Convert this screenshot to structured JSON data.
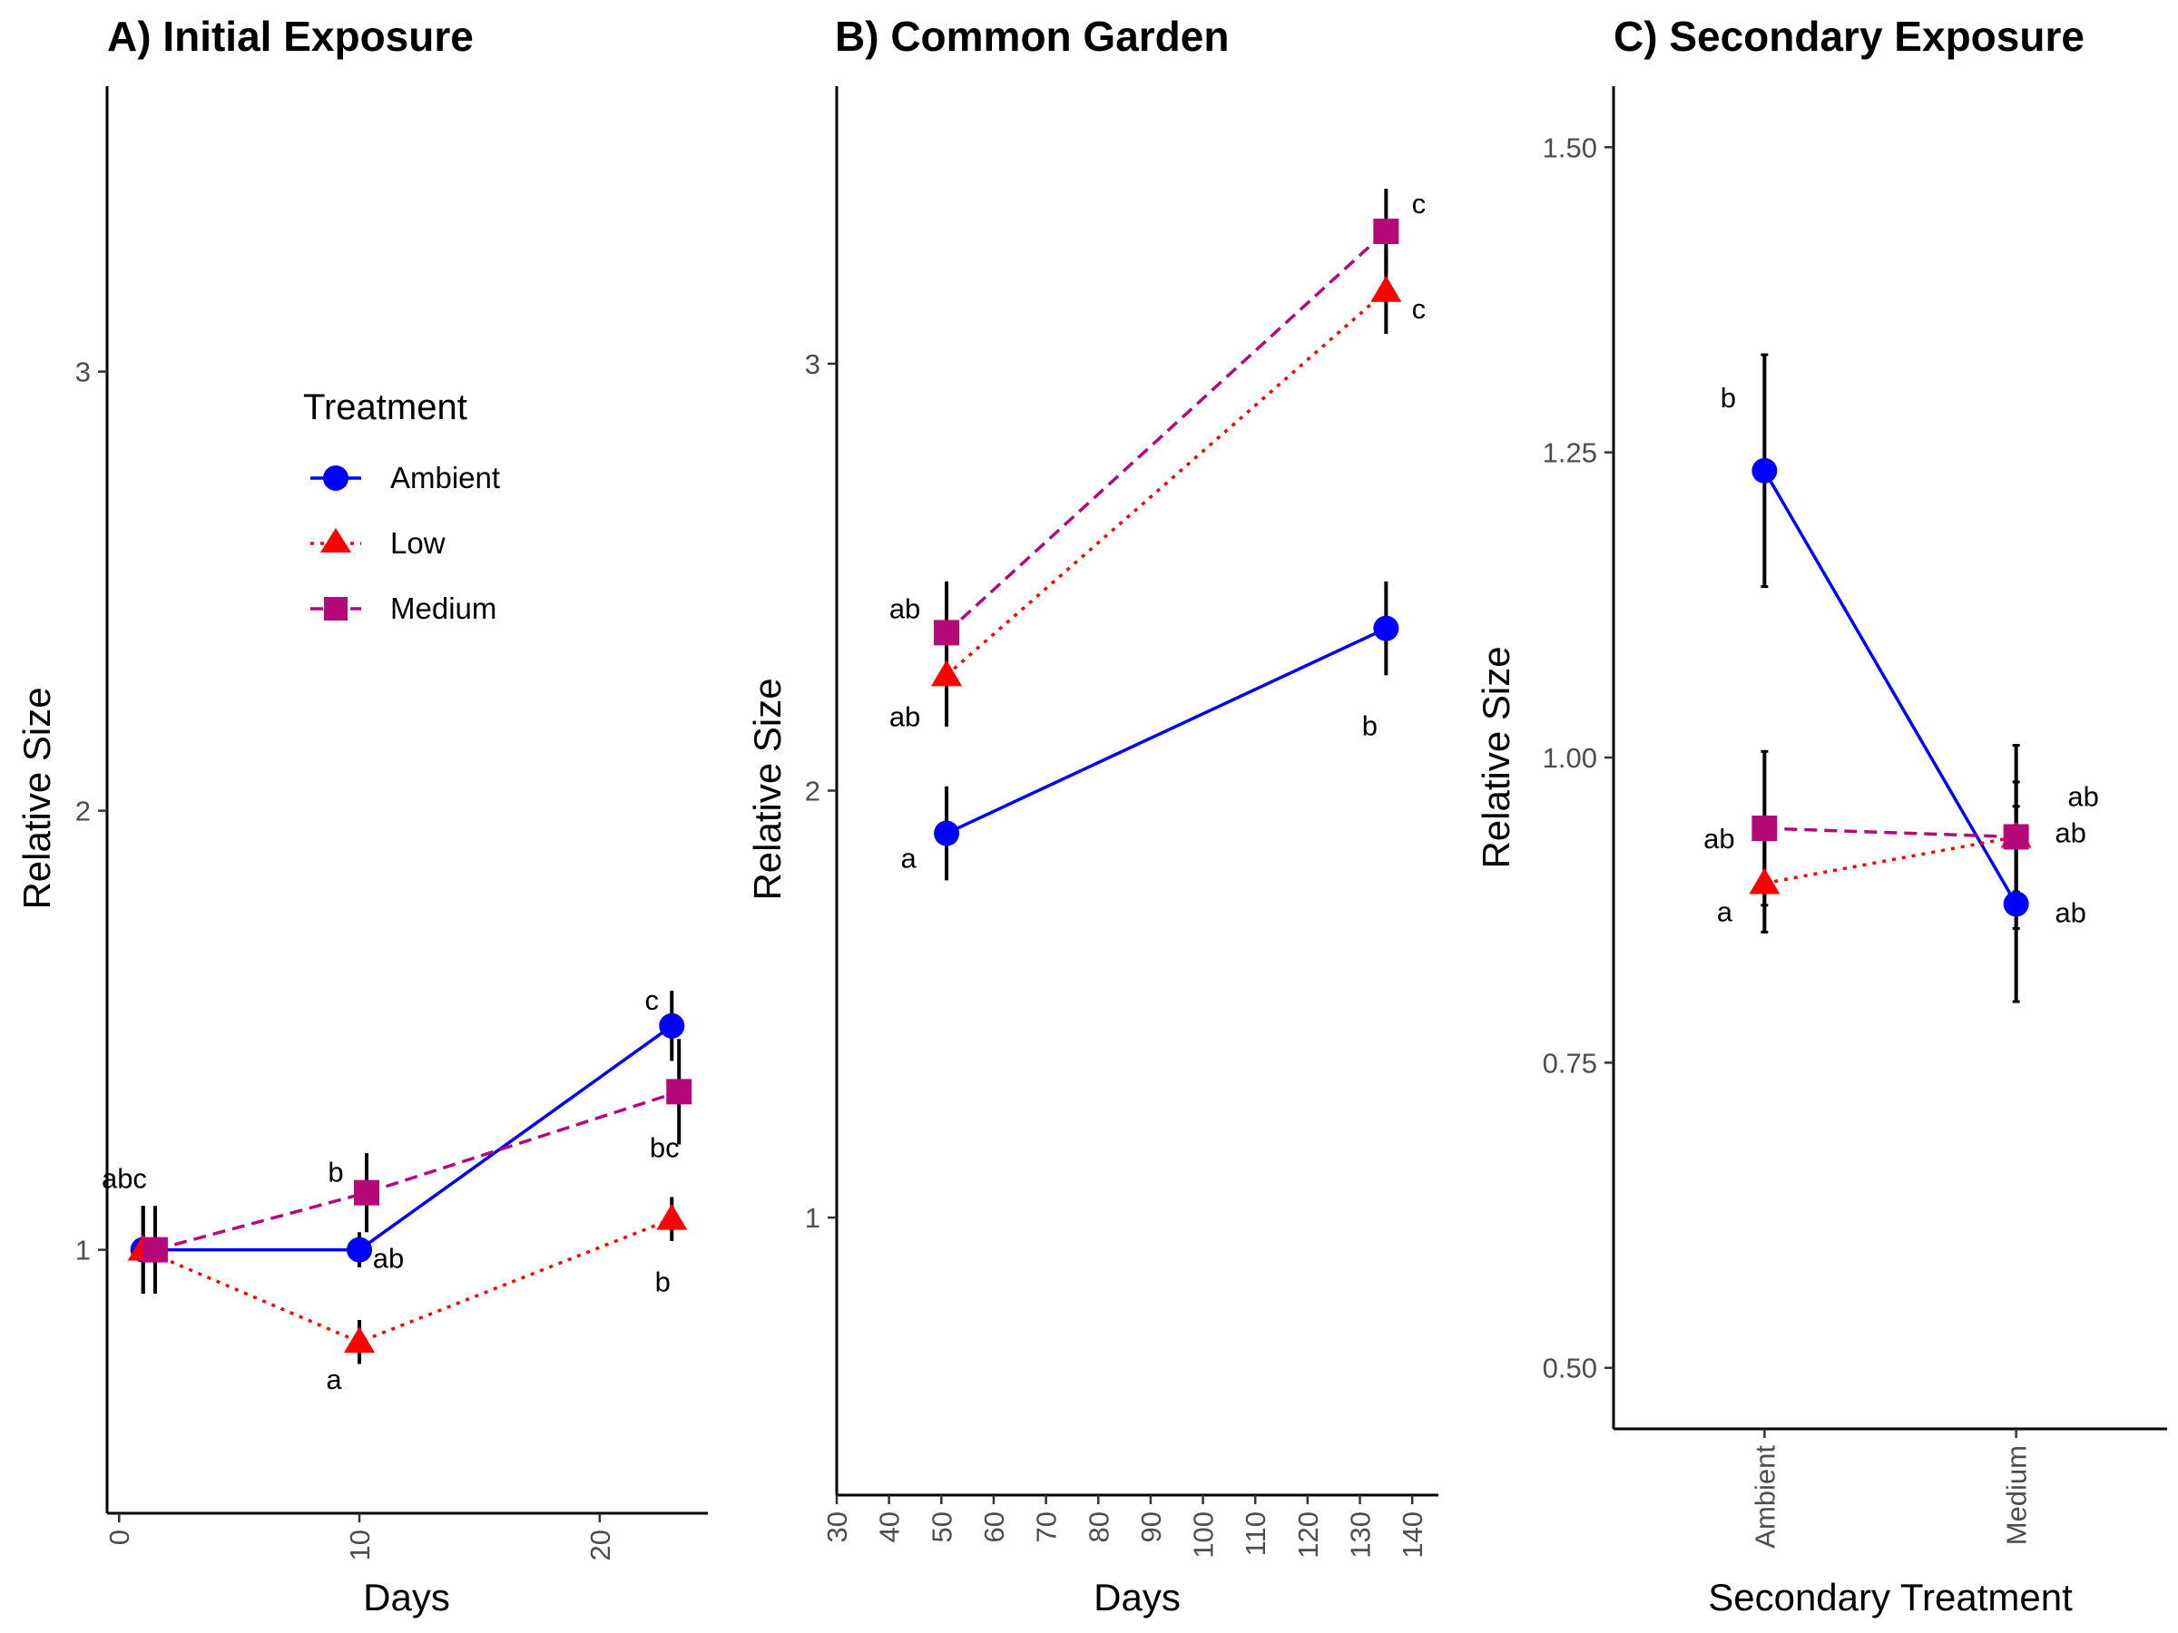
{
  "colors": {
    "Ambient": "#0000ff",
    "Low": "#ff0000",
    "Medium": "#b5097a"
  },
  "chart_data": [
    {
      "type": "line",
      "title": "A) Initial Exposure",
      "xlabel": "Days",
      "ylabel": "Relative Size",
      "xlim": [
        -0.5,
        24.5
      ],
      "ylim": [
        0.4,
        3.65
      ],
      "xticks": [
        0,
        10,
        20
      ],
      "yticks": [
        1,
        2,
        3
      ],
      "rotate_x_ticks": true,
      "legend": {
        "title": "Treatment",
        "position": "inside-top-left",
        "entries": [
          "Ambient",
          "Low",
          "Medium"
        ]
      },
      "series": [
        {
          "name": "Ambient",
          "x": [
            1,
            10,
            23
          ],
          "y": [
            1.0,
            1.0,
            1.51
          ],
          "err": [
            0.1,
            0.04,
            0.08
          ],
          "letters": [
            "",
            "ab",
            "c"
          ]
        },
        {
          "name": "Low",
          "x": [
            1,
            10,
            23
          ],
          "y": [
            1.0,
            0.79,
            1.07
          ],
          "err": [
            0.1,
            0.05,
            0.05
          ],
          "letters": [
            "",
            "a",
            "b"
          ]
        },
        {
          "name": "Medium",
          "x": [
            1.5,
            10.3,
            23.3
          ],
          "y": [
            1.0,
            1.13,
            1.36
          ],
          "err": [
            0.1,
            0.09,
            0.12
          ],
          "letters": [
            "abc",
            "b",
            "bc"
          ]
        }
      ]
    },
    {
      "type": "line",
      "title": "B) Common Garden",
      "xlabel": "Days",
      "ylabel": "Relative Size",
      "xlim": [
        30,
        145
      ],
      "ylim": [
        0.35,
        3.65
      ],
      "xticks": [
        30,
        40,
        50,
        60,
        70,
        80,
        90,
        100,
        110,
        120,
        130,
        140
      ],
      "yticks": [
        1,
        2,
        3
      ],
      "rotate_x_ticks": true,
      "series": [
        {
          "name": "Ambient",
          "x": [
            51,
            135
          ],
          "y": [
            1.9,
            2.38
          ],
          "err": [
            0.11,
            0.11
          ],
          "letters": [
            "a",
            "b"
          ]
        },
        {
          "name": "Low",
          "x": [
            51,
            135
          ],
          "y": [
            2.27,
            3.17
          ],
          "err": [
            0.12,
            0.1
          ],
          "letters": [
            "ab",
            "c"
          ]
        },
        {
          "name": "Medium",
          "x": [
            51,
            135
          ],
          "y": [
            2.37,
            3.31
          ],
          "err": [
            0.12,
            0.1
          ],
          "letters": [
            "ab",
            "c"
          ]
        }
      ]
    },
    {
      "type": "line",
      "title": "C) Secondary Exposure",
      "xlabel": "Secondary Treatment",
      "ylabel": "Relative Size",
      "categories": [
        "Ambient",
        "Medium"
      ],
      "ylim": [
        0.45,
        1.55
      ],
      "yticks": [
        "0.50",
        "0.75",
        "1.00",
        "1.25",
        "1.50"
      ],
      "rotate_x_ticks": true,
      "series": [
        {
          "name": "Ambient",
          "x": [
            "Ambient",
            "Medium"
          ],
          "y": [
            1.235,
            0.88
          ],
          "err": [
            0.095,
            0.08
          ],
          "letters": [
            "b",
            "ab"
          ]
        },
        {
          "name": "Low",
          "x": [
            "Ambient",
            "Medium"
          ],
          "y": [
            0.897,
            0.935
          ],
          "err": [
            0.04,
            0.045
          ],
          "letters": [
            "a",
            "ab"
          ]
        },
        {
          "name": "Medium",
          "x": [
            "Ambient",
            "Medium"
          ],
          "y": [
            0.942,
            0.935
          ],
          "err": [
            0.063,
            0.075
          ],
          "letters": [
            "ab",
            "ab"
          ]
        }
      ]
    }
  ]
}
